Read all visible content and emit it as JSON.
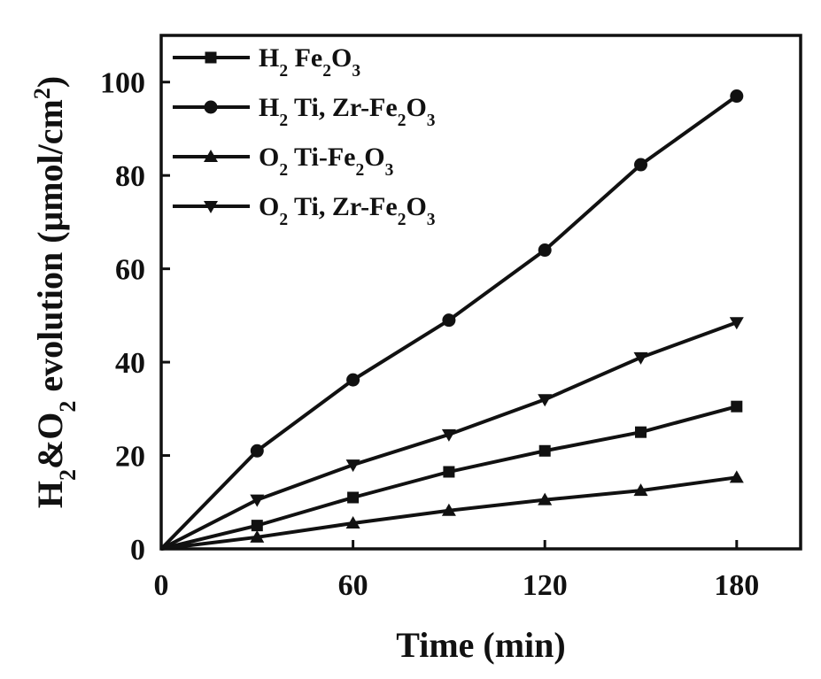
{
  "chart_data": {
    "type": "line",
    "xlabel": "Time (min)",
    "ylabel": {
      "parts": [
        {
          "t": "H",
          "sub": false
        },
        {
          "t": "2",
          "sub": true
        },
        {
          "t": "&O",
          "sub": false
        },
        {
          "t": "2",
          "sub": true
        },
        {
          "t": " evolution (μmol/cm",
          "sub": false
        },
        {
          "t": "2",
          "sup": true
        },
        {
          "t": ")",
          "sub": false
        }
      ]
    },
    "xlim": [
      0,
      200
    ],
    "ylim": [
      0,
      110
    ],
    "xticks": [
      0,
      60,
      120,
      180
    ],
    "yticks": [
      0,
      20,
      40,
      60,
      80,
      100
    ],
    "x": [
      0,
      30,
      60,
      90,
      120,
      150,
      180
    ],
    "legend_position": "top-left",
    "series": [
      {
        "key": "h2-fe2o3",
        "marker": "square",
        "legend": [
          {
            "t": "H"
          },
          {
            "t": "2",
            "sub": true
          },
          {
            "t": " Fe"
          },
          {
            "t": "2",
            "sub": true
          },
          {
            "t": "O"
          },
          {
            "t": "3",
            "sub": true
          }
        ],
        "values": [
          0,
          5,
          11,
          16.5,
          21,
          25,
          30.5
        ]
      },
      {
        "key": "h2-ti-zr-fe2o3",
        "marker": "circle",
        "legend": [
          {
            "t": "H"
          },
          {
            "t": "2",
            "sub": true
          },
          {
            "t": " Ti, Zr-Fe"
          },
          {
            "t": "2",
            "sub": true
          },
          {
            "t": "O"
          },
          {
            "t": "3",
            "sub": true
          }
        ],
        "values": [
          0,
          21,
          36.2,
          49,
          64,
          82.3,
          97
        ]
      },
      {
        "key": "o2-ti-fe2o3",
        "marker": "triangle-up",
        "legend": [
          {
            "t": "O"
          },
          {
            "t": "2",
            "sub": true
          },
          {
            "t": " Ti-Fe"
          },
          {
            "t": "2",
            "sub": true
          },
          {
            "t": "O"
          },
          {
            "t": "3",
            "sub": true
          }
        ],
        "values": [
          0,
          2.5,
          5.5,
          8.2,
          10.5,
          12.5,
          15.3
        ]
      },
      {
        "key": "o2-ti-zr-fe2o3",
        "marker": "triangle-down",
        "legend": [
          {
            "t": "O"
          },
          {
            "t": "2",
            "sub": true
          },
          {
            "t": " Ti, Zr-Fe"
          },
          {
            "t": "2",
            "sub": true
          },
          {
            "t": "O"
          },
          {
            "t": "3",
            "sub": true
          }
        ],
        "values": [
          0,
          10.5,
          18,
          24.5,
          32,
          41,
          48.5
        ]
      }
    ]
  }
}
